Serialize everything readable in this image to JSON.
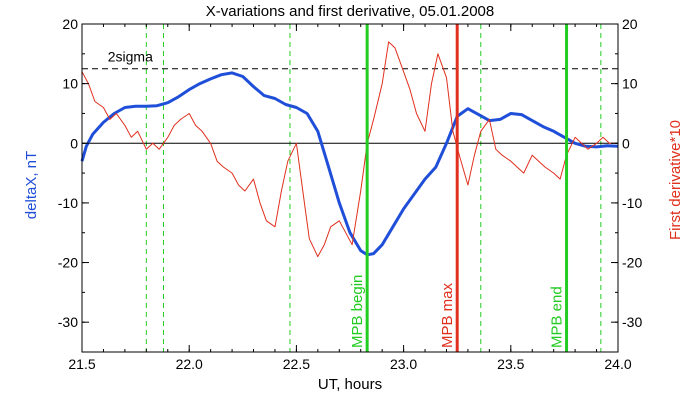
{
  "chart_data": {
    "type": "line",
    "title": "X-variations and first derivative, 05.01.2008",
    "xlabel": "UT, hours",
    "ylabel": "deltaX, nT",
    "y2label": "First derivative*10",
    "xlim": [
      21.5,
      24.0
    ],
    "ylim": [
      -35,
      20
    ],
    "y2lim": [
      -35,
      20
    ],
    "x_ticks": [
      21.5,
      22.0,
      22.5,
      23.0,
      23.5,
      24.0
    ],
    "x_tick_labels": [
      "21.5",
      "22.0",
      "22.5",
      "23.0",
      "23.5",
      "24.0"
    ],
    "y_ticks": [
      -30,
      -20,
      -10,
      0,
      10,
      20
    ],
    "y_tick_labels": [
      "-30",
      "-20",
      "-10",
      "0",
      "10",
      "20"
    ],
    "grid": false,
    "colors": {
      "deltaX": "#1f4fd8",
      "derivative": "#e0301e",
      "threshold": "#000000",
      "guide": "#22cc22",
      "mpb_max": "#e0301e"
    },
    "threshold": {
      "label": "2sigma",
      "y": 12.5
    },
    "zero_line": 0,
    "dashed_green_lines": [
      21.8,
      21.88,
      22.47,
      23.36,
      23.92
    ],
    "markers": [
      {
        "x": 22.83,
        "label": "MPB begin",
        "color": "#22cc22"
      },
      {
        "x": 23.25,
        "label": "MPB max",
        "color": "#e0301e"
      },
      {
        "x": 23.76,
        "label": "MPB end",
        "color": "#22cc22"
      }
    ],
    "series": [
      {
        "axis": "left",
        "color": "#1f4fd8",
        "x": [
          21.5,
          21.52,
          21.55,
          21.6,
          21.65,
          21.7,
          21.75,
          21.8,
          21.85,
          21.9,
          21.95,
          22.0,
          22.05,
          22.1,
          22.15,
          22.2,
          22.25,
          22.3,
          22.35,
          22.4,
          22.45,
          22.5,
          22.55,
          22.6,
          22.65,
          22.7,
          22.75,
          22.8,
          22.83,
          22.86,
          22.9,
          22.95,
          23.0,
          23.05,
          23.1,
          23.15,
          23.2,
          23.25,
          23.3,
          23.35,
          23.4,
          23.45,
          23.5,
          23.55,
          23.6,
          23.65,
          23.7,
          23.75,
          23.8,
          23.85,
          23.9,
          23.95,
          24.0
        ],
        "y": [
          -3,
          -0.5,
          1.5,
          3.5,
          5,
          6,
          6.2,
          6.2,
          6.3,
          6.8,
          7.8,
          9,
          10,
          10.8,
          11.5,
          11.8,
          11.2,
          9.5,
          8,
          7.5,
          6.5,
          6,
          5,
          2,
          -4,
          -10,
          -15,
          -18,
          -18.7,
          -18.5,
          -17,
          -14,
          -11,
          -8.5,
          -6,
          -4,
          0,
          4.5,
          5.8,
          4.8,
          3.8,
          4,
          5,
          4.8,
          3.8,
          2.8,
          2,
          1,
          0,
          -0.5,
          -0.6,
          -0.4,
          -0.5
        ]
      },
      {
        "axis": "right",
        "color": "#e0301e",
        "x": [
          21.5,
          21.53,
          21.56,
          21.6,
          21.63,
          21.66,
          21.7,
          21.73,
          21.76,
          21.8,
          21.83,
          21.86,
          21.9,
          21.93,
          21.96,
          22.0,
          22.03,
          22.06,
          22.1,
          22.13,
          22.16,
          22.2,
          22.23,
          22.26,
          22.3,
          22.33,
          22.36,
          22.4,
          22.43,
          22.46,
          22.5,
          22.53,
          22.56,
          22.6,
          22.63,
          22.66,
          22.7,
          22.73,
          22.76,
          22.8,
          22.83,
          22.86,
          22.9,
          22.93,
          22.96,
          23.0,
          23.03,
          23.06,
          23.1,
          23.13,
          23.16,
          23.2,
          23.23,
          23.26,
          23.3,
          23.33,
          23.36,
          23.4,
          23.43,
          23.46,
          23.5,
          23.53,
          23.56,
          23.6,
          23.63,
          23.66,
          23.7,
          23.73,
          23.76,
          23.8,
          23.83,
          23.86,
          23.9,
          23.93,
          23.96,
          24.0
        ],
        "y": [
          12,
          10,
          7,
          6,
          4,
          5,
          3,
          1,
          2,
          -1,
          0,
          -1,
          1,
          3,
          4,
          5,
          3,
          2,
          0,
          -3,
          -4,
          -5,
          -7,
          -8,
          -6,
          -10,
          -13,
          -14,
          -8,
          -3,
          0,
          -8,
          -16,
          -19,
          -17,
          -14,
          -13,
          -15,
          -17,
          -8,
          0,
          4,
          10,
          17,
          16,
          12,
          9,
          5,
          2,
          10,
          15,
          11,
          2,
          -2,
          -7,
          -2,
          2,
          4,
          -1,
          -2,
          -3,
          -4,
          -5,
          -2,
          -3,
          -4,
          -5,
          -6,
          -2,
          1,
          0,
          -1,
          0,
          1,
          0,
          0
        ]
      }
    ]
  }
}
